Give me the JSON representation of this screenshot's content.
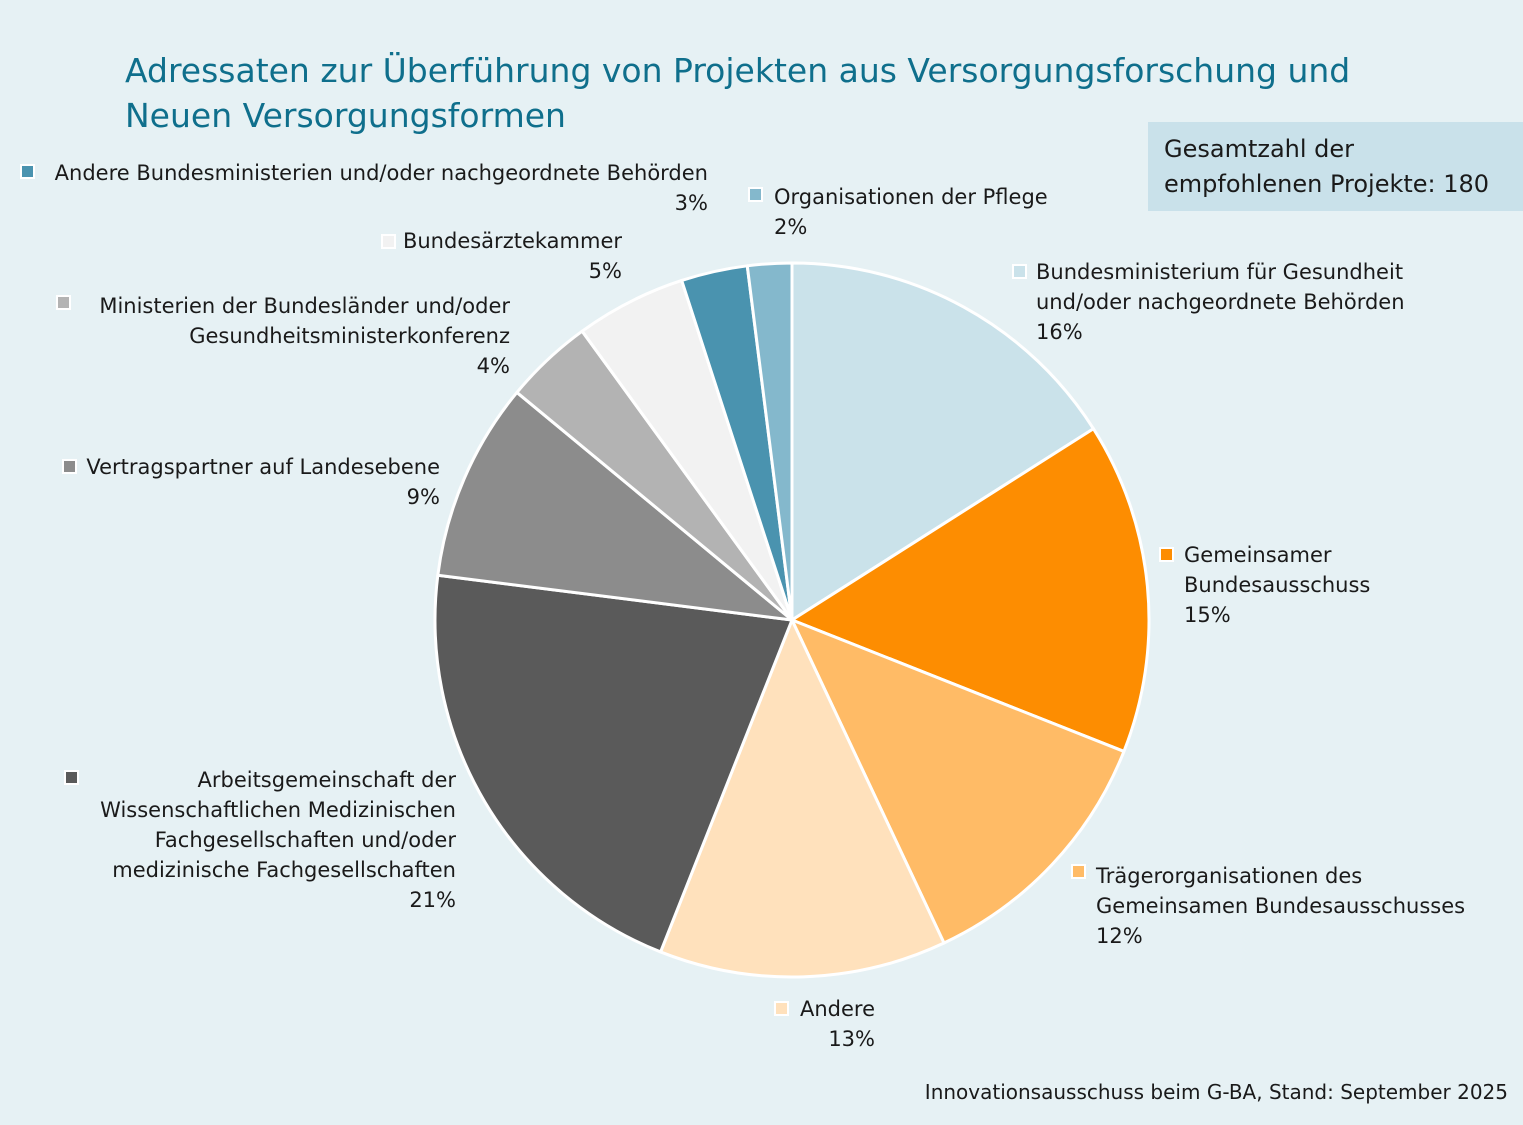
{
  "header": {
    "title": "Adressaten zur Überführung von Projekten aus Versorgungsforschung und Neuen Versorgungsformen",
    "total_box": "Gesamtzahl der empfohlenen Projekte: 180"
  },
  "footer": {
    "source": "Innovationsausschuss beim G-BA, Stand: September 2025"
  },
  "chart_data": {
    "type": "pie",
    "title": "Adressaten zur Überführung von Projekten aus Versorgungsforschung und Neuen Versorgungsformen",
    "legend": "labels beside slices",
    "start_angle": "12 o'clock, clockwise",
    "slices": [
      {
        "label": "Bundesministerium für Gesundheit und/oder nachgeordnete Behörden",
        "value": 16,
        "pct_label": "16%",
        "color": "#cae2ea"
      },
      {
        "label": "Gemeinsamer Bundesausschuss",
        "value": 15,
        "pct_label": "15%",
        "color": "#fd8d01"
      },
      {
        "label": "Trägerorganisationen des Gemeinsamen Bundesausschusses",
        "value": 12,
        "pct_label": "12%",
        "color": "#ffbb66"
      },
      {
        "label": "Andere",
        "value": 13,
        "pct_label": "13%",
        "color": "#ffe1bc"
      },
      {
        "label": "Arbeitsgemeinschaft der Wissenschaftlichen Medizinischen Fachgesellschaften und/oder medizinische Fachgesellschaften",
        "value": 21,
        "pct_label": "21%",
        "color": "#5a5a5a"
      },
      {
        "label": "Vertragspartner auf Landesebene",
        "value": 9,
        "pct_label": "9%",
        "color": "#8c8c8c"
      },
      {
        "label": "Ministerien der Bundesländer und/oder Gesundheitsministerkonferenz",
        "value": 4,
        "pct_label": "4%",
        "color": "#b3b3b3"
      },
      {
        "label": "Bundesärztekammer",
        "value": 5,
        "pct_label": "5%",
        "color": "#f2f2f2"
      },
      {
        "label": "Andere Bundesministerien und/oder nachgeordnete Behörden",
        "value": 3,
        "pct_label": "3%",
        "color": "#4a93af"
      },
      {
        "label": "Organisationen der Pflege",
        "value": 2,
        "pct_label": "2%",
        "color": "#84b8cc"
      }
    ]
  }
}
